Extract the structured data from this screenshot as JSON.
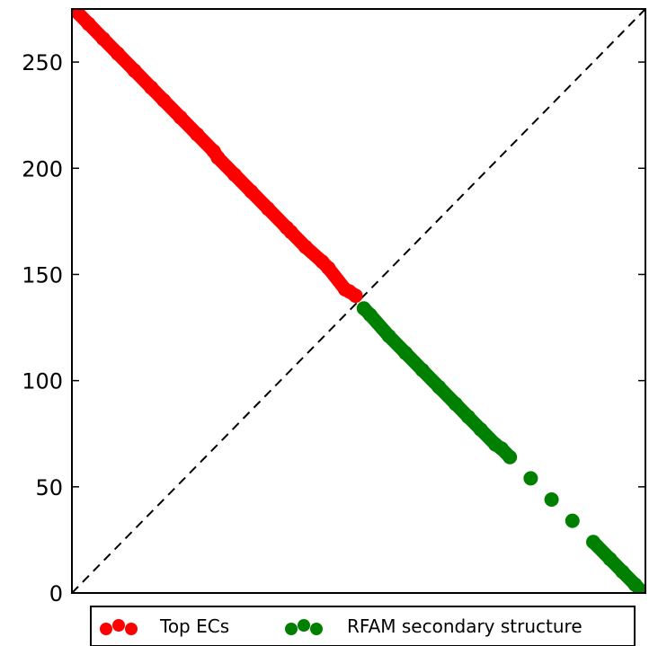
{
  "chart_data": {
    "type": "scatter",
    "title": "",
    "xlabel": "",
    "ylabel": "",
    "xlim": [
      0,
      275
    ],
    "ylim": [
      0,
      275
    ],
    "yticks": [
      0,
      50,
      100,
      150,
      200,
      250
    ],
    "x_ticks_visible": false,
    "grid": false,
    "reference_line": {
      "style": "dashed",
      "color": "#000000",
      "from": [
        0,
        0
      ],
      "to": [
        275,
        275
      ]
    },
    "legend_placement": "bottom-center, below plot",
    "series": [
      {
        "name": "Top ECs",
        "color": "#ff0000",
        "points": [
          [
            2,
            274
          ],
          [
            8,
            268
          ],
          [
            15,
            261
          ],
          [
            22,
            254
          ],
          [
            30,
            246
          ],
          [
            38,
            238
          ],
          [
            44,
            232
          ],
          [
            52,
            224
          ],
          [
            60,
            216
          ],
          [
            68,
            208
          ],
          [
            70,
            205
          ],
          [
            78,
            197
          ],
          [
            86,
            189
          ],
          [
            94,
            181
          ],
          [
            103,
            172
          ],
          [
            105,
            170
          ],
          [
            112,
            163
          ],
          [
            120,
            156
          ],
          [
            123,
            153
          ],
          [
            131,
            143
          ],
          [
            133,
            142
          ],
          [
            136,
            140
          ]
        ]
      },
      {
        "name": "RFAM secondary structure",
        "color": "#008000",
        "points": [
          [
            140,
            134
          ],
          [
            143,
            131
          ],
          [
            152,
            121
          ],
          [
            160,
            113
          ],
          [
            168,
            105
          ],
          [
            176,
            97
          ],
          [
            184,
            89
          ],
          [
            190,
            83
          ],
          [
            196,
            77
          ],
          [
            203,
            70
          ],
          [
            206,
            68
          ],
          [
            210,
            64
          ],
          [
            220,
            54
          ],
          [
            230,
            44
          ],
          [
            240,
            34
          ],
          [
            250,
            24
          ],
          [
            258,
            16
          ],
          [
            264,
            10
          ],
          [
            270,
            4
          ],
          [
            274,
            0
          ]
        ]
      }
    ]
  }
}
